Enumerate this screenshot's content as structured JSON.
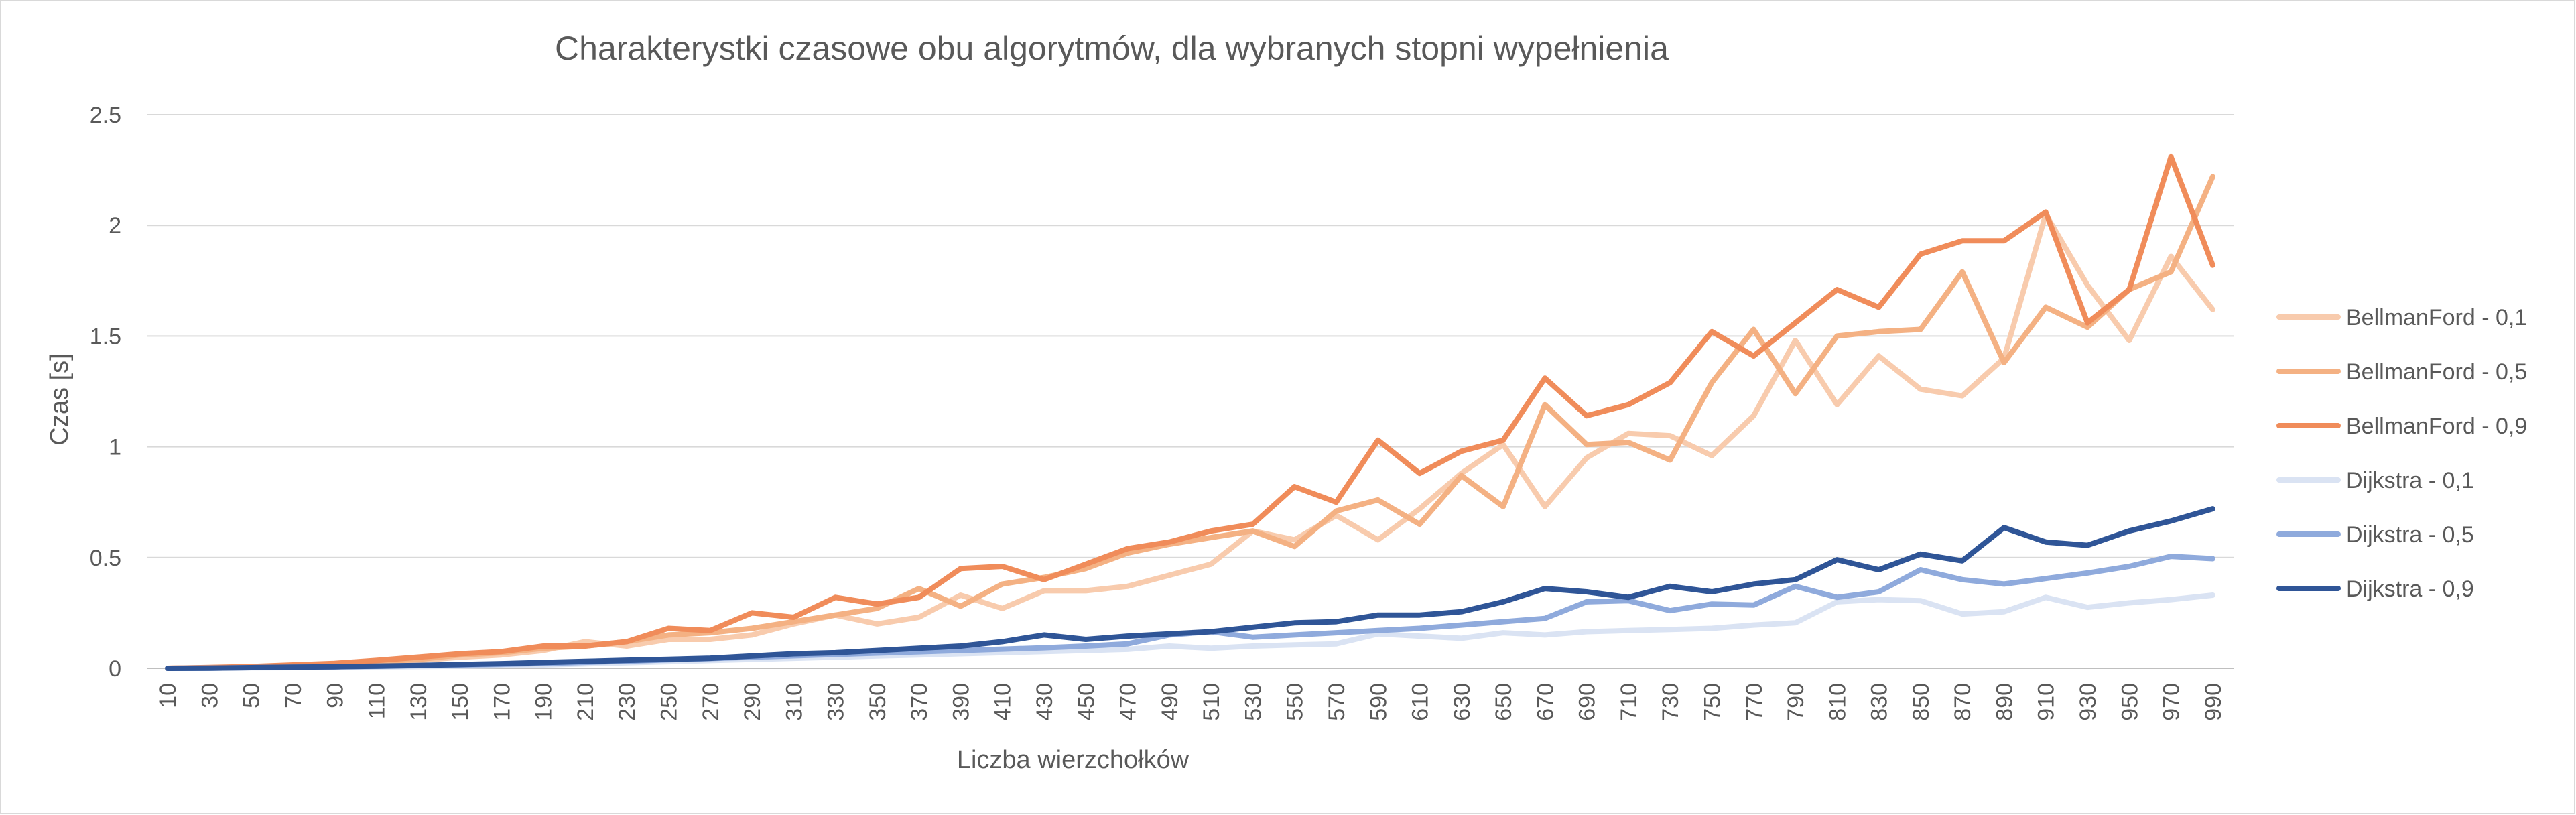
{
  "chart_data": {
    "type": "line",
    "title": "Charakterystki czasowe obu algorytmów, dla wybranych stopni wypełnienia",
    "xlabel": "Liczba wierzchołków",
    "ylabel": "Czas [s]",
    "ylim": [
      0,
      2.5
    ],
    "yticks": [
      "0",
      "0.5",
      "1",
      "1.5",
      "2",
      "2.5"
    ],
    "grid": true,
    "legend_position": "right",
    "categories": [
      "10",
      "30",
      "50",
      "70",
      "90",
      "110",
      "130",
      "150",
      "170",
      "190",
      "210",
      "230",
      "250",
      "270",
      "290",
      "310",
      "330",
      "350",
      "370",
      "390",
      "410",
      "430",
      "450",
      "470",
      "490",
      "510",
      "530",
      "550",
      "570",
      "590",
      "610",
      "630",
      "650",
      "670",
      "690",
      "710",
      "730",
      "750",
      "770",
      "790",
      "810",
      "830",
      "850",
      "870",
      "890",
      "910",
      "930",
      "950",
      "970",
      "990"
    ],
    "series": [
      {
        "name": "BellmanFord - 0,1",
        "color": "#f8cbad",
        "values": [
          0,
          0.002,
          0.005,
          0.01,
          0.015,
          0.025,
          0.035,
          0.05,
          0.06,
          0.08,
          0.12,
          0.1,
          0.13,
          0.13,
          0.15,
          0.2,
          0.24,
          0.2,
          0.23,
          0.33,
          0.27,
          0.35,
          0.35,
          0.37,
          0.42,
          0.47,
          0.62,
          0.58,
          0.69,
          0.58,
          0.72,
          0.88,
          1.01,
          0.73,
          0.95,
          1.06,
          1.05,
          0.96,
          1.14,
          1.48,
          1.19,
          1.41,
          1.26,
          1.23,
          1.4,
          2.05,
          1.73,
          1.48,
          1.86,
          1.62
        ]
      },
      {
        "name": "BellmanFord - 0,5",
        "color": "#f4b183",
        "values": [
          0,
          0.003,
          0.007,
          0.012,
          0.02,
          0.03,
          0.04,
          0.06,
          0.07,
          0.09,
          0.1,
          0.12,
          0.15,
          0.16,
          0.18,
          0.21,
          0.24,
          0.27,
          0.36,
          0.28,
          0.38,
          0.41,
          0.45,
          0.52,
          0.56,
          0.59,
          0.62,
          0.55,
          0.71,
          0.76,
          0.65,
          0.87,
          0.73,
          1.19,
          1.01,
          1.02,
          0.94,
          1.29,
          1.53,
          1.24,
          1.5,
          1.52,
          1.53,
          1.79,
          1.38,
          1.63,
          1.54,
          1.71,
          1.79,
          2.22
        ]
      },
      {
        "name": "BellmanFord - 0,9",
        "color": "#f08c5a",
        "values": [
          0,
          0.004,
          0.008,
          0.015,
          0.022,
          0.035,
          0.05,
          0.065,
          0.075,
          0.1,
          0.1,
          0.12,
          0.18,
          0.17,
          0.25,
          0.23,
          0.32,
          0.29,
          0.32,
          0.45,
          0.46,
          0.4,
          0.47,
          0.54,
          0.57,
          0.62,
          0.65,
          0.82,
          0.75,
          1.03,
          0.88,
          0.98,
          1.03,
          1.31,
          1.14,
          1.19,
          1.29,
          1.52,
          1.41,
          1.56,
          1.71,
          1.63,
          1.87,
          1.93,
          1.93,
          2.06,
          1.56,
          1.71,
          2.31,
          1.82
        ]
      },
      {
        "name": "Dijkstra - 0,1",
        "color": "#dae3f3",
        "values": [
          0,
          0.001,
          0.002,
          0.003,
          0.004,
          0.006,
          0.008,
          0.01,
          0.012,
          0.015,
          0.02,
          0.025,
          0.03,
          0.035,
          0.04,
          0.045,
          0.05,
          0.055,
          0.06,
          0.065,
          0.07,
          0.075,
          0.08,
          0.085,
          0.1,
          0.09,
          0.1,
          0.105,
          0.11,
          0.155,
          0.145,
          0.135,
          0.16,
          0.15,
          0.165,
          0.17,
          0.175,
          0.18,
          0.195,
          0.205,
          0.3,
          0.31,
          0.305,
          0.245,
          0.255,
          0.32,
          0.275,
          0.295,
          0.31,
          0.33
        ]
      },
      {
        "name": "Dijkstra - 0,5",
        "color": "#8faadc",
        "values": [
          0,
          0.001,
          0.003,
          0.005,
          0.007,
          0.009,
          0.012,
          0.015,
          0.018,
          0.022,
          0.027,
          0.032,
          0.038,
          0.044,
          0.05,
          0.056,
          0.062,
          0.068,
          0.074,
          0.08,
          0.086,
          0.092,
          0.1,
          0.11,
          0.15,
          0.165,
          0.14,
          0.15,
          0.16,
          0.17,
          0.18,
          0.195,
          0.21,
          0.225,
          0.3,
          0.305,
          0.26,
          0.29,
          0.285,
          0.37,
          0.32,
          0.345,
          0.445,
          0.4,
          0.38,
          0.405,
          0.43,
          0.46,
          0.505,
          0.495
        ]
      },
      {
        "name": "Dijkstra - 0,9",
        "color": "#2f5597",
        "values": [
          0,
          0.001,
          0.003,
          0.005,
          0.007,
          0.01,
          0.013,
          0.017,
          0.021,
          0.026,
          0.031,
          0.036,
          0.04,
          0.045,
          0.055,
          0.065,
          0.07,
          0.08,
          0.09,
          0.1,
          0.12,
          0.15,
          0.13,
          0.145,
          0.155,
          0.165,
          0.185,
          0.205,
          0.21,
          0.24,
          0.24,
          0.255,
          0.3,
          0.36,
          0.345,
          0.32,
          0.37,
          0.345,
          0.38,
          0.4,
          0.49,
          0.445,
          0.515,
          0.485,
          0.635,
          0.57,
          0.555,
          0.62,
          0.665,
          0.72
        ]
      }
    ]
  }
}
